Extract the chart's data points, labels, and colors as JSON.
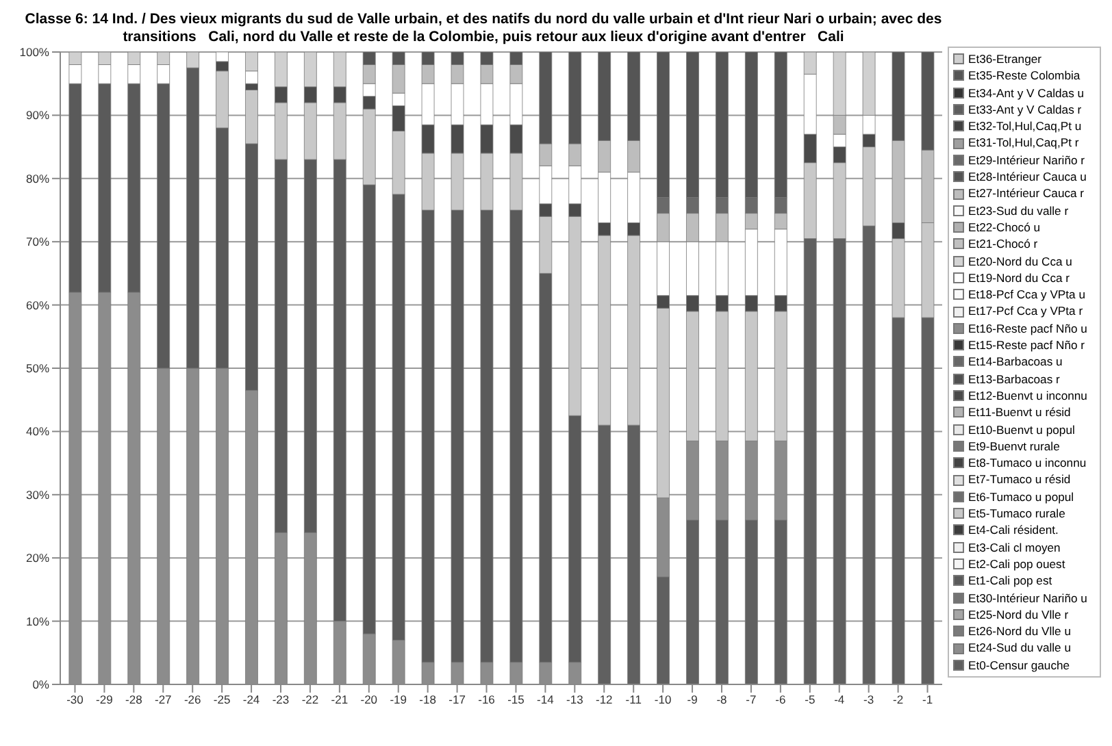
{
  "chart_data": {
    "type": "bar",
    "stacked": true,
    "title": "Classe 6: 14 Ind. / Des vieux migrants du sud de Valle urbain, et des natifs du nord du valle urbain et d'Int rieur Nari o urbain; avec des transitions   Cali, nord du Valle et reste de la Colombie, puis retour aux lieux d'origine avant d'entrer   Cali",
    "categories": [
      "-30",
      "-29",
      "-28",
      "-27",
      "-26",
      "-25",
      "-24",
      "-23",
      "-22",
      "-21",
      "-20",
      "-19",
      "-18",
      "-17",
      "-16",
      "-15",
      "-14",
      "-13",
      "-12",
      "-11",
      "-10",
      "-9",
      "-8",
      "-7",
      "-6",
      "-5",
      "-4",
      "-3",
      "-2",
      "-1"
    ],
    "ylim": [
      0,
      100
    ],
    "yticks": [
      {
        "value": 0,
        "label": "0%"
      },
      {
        "value": 10,
        "label": "10%"
      },
      {
        "value": 20,
        "label": "20%"
      },
      {
        "value": 30,
        "label": "30%"
      },
      {
        "value": 40,
        "label": "40%"
      },
      {
        "value": 50,
        "label": "50%"
      },
      {
        "value": 60,
        "label": "60%"
      },
      {
        "value": 70,
        "label": "70%"
      },
      {
        "value": 80,
        "label": "80%"
      },
      {
        "value": 90,
        "label": "90%"
      },
      {
        "value": 100,
        "label": "100%"
      }
    ],
    "grid": "y",
    "legend": "right",
    "series": [
      {
        "name": "Et0-Censur gauche",
        "color": "#606060",
        "values": [
          0,
          0,
          0,
          0,
          0,
          0,
          0,
          0,
          0,
          0,
          0,
          0,
          0,
          0,
          0,
          0,
          0,
          0,
          41,
          41,
          17,
          26,
          26,
          26,
          26,
          70.5,
          70.5,
          72.5,
          58,
          58
        ]
      },
      {
        "name": "Et24-Sud du valle u",
        "color": "#8c8c8c",
        "values": [
          62,
          62,
          62,
          50,
          50,
          50,
          46.5,
          24,
          24,
          10,
          8,
          7,
          3.5,
          3.5,
          3.5,
          3.5,
          3.5,
          3.5,
          0,
          0,
          12.5,
          12.5,
          12.5,
          12.5,
          12.5,
          0,
          0,
          0,
          0,
          0
        ]
      },
      {
        "name": "Et26-Nord du Vlle u",
        "color": "#7a7a7a",
        "values": [
          0,
          0,
          0,
          0,
          0,
          0,
          0,
          0,
          0,
          0,
          0,
          0,
          0,
          0,
          0,
          0,
          0,
          0,
          0,
          0,
          0,
          0,
          0,
          0,
          0,
          0,
          0,
          0,
          0,
          0
        ]
      },
      {
        "name": "Et25-Nord du Vlle r",
        "color": "#a6a6a6",
        "values": [
          0,
          0,
          0,
          0,
          0,
          0,
          0,
          0,
          0,
          0,
          0,
          0,
          0,
          0,
          0,
          0,
          0,
          0,
          0,
          0,
          0,
          0,
          0,
          0,
          0,
          0,
          0,
          0,
          0,
          0
        ]
      },
      {
        "name": "Et30-Intérieur Nariño u",
        "color": "#737373",
        "values": [
          0,
          0,
          0,
          0,
          0,
          0,
          0,
          0,
          0,
          0,
          0,
          0,
          0,
          0,
          0,
          0,
          0,
          0,
          0,
          0,
          0,
          0,
          0,
          0,
          0,
          0,
          0,
          0,
          0,
          0
        ]
      },
      {
        "name": "Et1-Cali pop est",
        "color": "#5a5a5a",
        "values": [
          33,
          33,
          33,
          45,
          47.5,
          38,
          39,
          59,
          59,
          73,
          71,
          70.5,
          71.5,
          71.5,
          71.5,
          71.5,
          61.5,
          39,
          0,
          0,
          0,
          0,
          0,
          0,
          0,
          0,
          0,
          0,
          0,
          0
        ]
      },
      {
        "name": "Et2-Cali pop ouest",
        "color": "#f5f5f5",
        "values": [
          0,
          0,
          0,
          0,
          0,
          0,
          0,
          0,
          0,
          0,
          0,
          0,
          0,
          0,
          0,
          0,
          0,
          0,
          0,
          0,
          0,
          0,
          0,
          0,
          0,
          0,
          0,
          0,
          0,
          0
        ]
      },
      {
        "name": "Et3-Cali cl moyen",
        "color": "#eeeeee",
        "values": [
          0,
          0,
          0,
          0,
          0,
          0,
          0,
          0,
          0,
          0,
          0,
          0,
          0,
          0,
          0,
          0,
          0,
          0,
          0,
          0,
          0,
          0,
          0,
          0,
          0,
          0,
          0,
          0,
          0,
          0
        ]
      },
      {
        "name": "Et4-Cali résident.",
        "color": "#3c3c3c",
        "values": [
          0,
          0,
          0,
          0,
          0,
          0,
          0,
          0,
          0,
          0,
          0,
          0,
          0,
          0,
          0,
          0,
          0,
          0,
          0,
          0,
          0,
          0,
          0,
          0,
          0,
          0,
          0,
          0,
          0,
          0
        ]
      },
      {
        "name": "Et5-Tumaco rurale",
        "color": "#c8c8c8",
        "values": [
          0,
          0,
          0,
          0,
          0,
          9,
          8.5,
          9,
          9,
          9,
          12,
          10,
          9,
          9,
          9,
          9,
          9,
          31.5,
          30,
          30,
          30,
          20.5,
          20.5,
          20.5,
          20.5,
          12,
          12,
          12.5,
          12.5,
          15
        ]
      },
      {
        "name": "Et6-Tumaco u popul",
        "color": "#6e6e6e",
        "values": [
          0,
          0,
          0,
          0,
          0,
          0,
          0,
          0,
          0,
          0,
          0,
          0,
          0,
          0,
          0,
          0,
          0,
          0,
          0,
          0,
          0,
          0,
          0,
          0,
          0,
          0,
          0,
          0,
          0,
          0
        ]
      },
      {
        "name": "Et7-Tumaco u résid",
        "color": "#e0e0e0",
        "values": [
          0,
          0,
          0,
          0,
          0,
          0,
          0,
          0,
          0,
          0,
          0,
          0,
          0,
          0,
          0,
          0,
          0,
          0,
          0,
          0,
          0,
          0,
          0,
          0,
          0,
          0,
          0,
          0,
          0,
          0
        ]
      },
      {
        "name": "Et8-Tumaco u inconnu",
        "color": "#444444",
        "values": [
          0,
          0,
          0,
          0,
          0,
          0,
          0,
          0,
          0,
          0,
          0,
          0,
          0,
          0,
          0,
          0,
          0,
          0,
          0,
          0,
          0,
          0,
          0,
          0,
          0,
          0,
          0,
          0,
          0,
          0
        ]
      },
      {
        "name": "Et9-Buenvt rurale",
        "color": "#777777",
        "values": [
          0,
          0,
          0,
          0,
          0,
          0,
          0,
          0,
          0,
          0,
          0,
          0,
          0,
          0,
          0,
          0,
          0,
          0,
          0,
          0,
          0,
          0,
          0,
          0,
          0,
          0,
          0,
          0,
          0,
          0
        ]
      },
      {
        "name": "Et10-Buenvt u popul",
        "color": "#e8e8e8",
        "values": [
          0,
          0,
          0,
          0,
          0,
          0,
          0,
          0,
          0,
          0,
          0,
          0,
          0,
          0,
          0,
          0,
          0,
          0,
          0,
          0,
          0,
          0,
          0,
          0,
          0,
          0,
          0,
          0,
          0,
          0
        ]
      },
      {
        "name": "Et11-Buenvt u résid",
        "color": "#b4b4b4",
        "values": [
          0,
          0,
          0,
          0,
          0,
          0,
          0,
          0,
          0,
          0,
          0,
          0,
          0,
          0,
          0,
          0,
          0,
          0,
          0,
          0,
          0,
          0,
          0,
          0,
          0,
          0,
          0,
          0,
          0,
          0
        ]
      },
      {
        "name": "Et12-Buenvt u inconnu",
        "color": "#4a4a4a",
        "values": [
          0,
          0,
          0,
          0,
          0,
          1.5,
          1,
          2.5,
          2.5,
          2.5,
          2,
          4,
          4.5,
          4.5,
          4.5,
          4.5,
          2,
          2,
          2,
          2,
          2,
          2.5,
          2.5,
          2.5,
          2.5,
          4.5,
          2.5,
          2,
          2.5,
          0
        ]
      },
      {
        "name": "Et13-Barbacoas r",
        "color": "#505050",
        "values": [
          0,
          0,
          0,
          0,
          0,
          0,
          0,
          0,
          0,
          0,
          0,
          0,
          0,
          0,
          0,
          0,
          0,
          0,
          0,
          0,
          0,
          0,
          0,
          0,
          0,
          0,
          0,
          0,
          0,
          0
        ]
      },
      {
        "name": "Et14-Barbacoas u",
        "color": "#686868",
        "values": [
          0,
          0,
          0,
          0,
          0,
          0,
          0,
          0,
          0,
          0,
          0,
          0,
          0,
          0,
          0,
          0,
          0,
          0,
          0,
          0,
          0,
          0,
          0,
          0,
          0,
          0,
          0,
          0,
          0,
          0
        ]
      },
      {
        "name": "Et15-Reste pacf Nño r",
        "color": "#383838",
        "values": [
          0,
          0,
          0,
          0,
          0,
          0,
          0,
          0,
          0,
          0,
          0,
          0,
          0,
          0,
          0,
          0,
          0,
          0,
          0,
          0,
          0,
          0,
          0,
          0,
          0,
          0,
          0,
          0,
          0,
          0
        ]
      },
      {
        "name": "Et16-Reste pacf Nño u",
        "color": "#8a8a8a",
        "values": [
          0,
          0,
          0,
          0,
          0,
          0,
          0,
          0,
          0,
          0,
          0,
          0,
          0,
          0,
          0,
          0,
          0,
          0,
          0,
          0,
          0,
          0,
          0,
          0,
          0,
          0,
          0,
          0,
          0,
          0
        ]
      },
      {
        "name": "Et17-Pcf Cca y VPta r",
        "color": "#f0f0f0",
        "values": [
          0,
          0,
          0,
          0,
          0,
          0,
          0,
          0,
          0,
          0,
          0,
          0,
          0,
          0,
          0,
          0,
          0,
          0,
          0,
          0,
          0,
          0,
          0,
          0,
          0,
          0,
          0,
          0,
          0,
          0
        ]
      },
      {
        "name": "Et18-Pcf Cca y VPta u",
        "color": "#fafafa",
        "values": [
          0,
          0,
          0,
          0,
          0,
          0,
          0,
          0,
          0,
          0,
          0,
          0,
          0,
          0,
          0,
          0,
          0,
          0,
          0,
          0,
          0,
          0,
          0,
          0,
          0,
          0,
          0,
          0,
          0,
          0
        ]
      },
      {
        "name": "Et19-Nord du Cca r",
        "color": "#ffffff",
        "values": [
          3,
          3,
          3,
          3,
          0,
          1.5,
          2,
          0,
          0,
          0,
          2,
          2,
          6.5,
          6.5,
          6.5,
          6.5,
          6,
          6,
          8,
          8,
          8.5,
          8.5,
          8.5,
          10.5,
          10.5,
          9.5,
          2,
          3,
          0,
          0
        ]
      },
      {
        "name": "Et20-Nord du Cca u",
        "color": "#d4d4d4",
        "values": [
          0,
          0,
          0,
          0,
          0,
          0,
          0,
          0,
          0,
          0,
          0,
          0,
          0,
          0,
          0,
          0,
          0,
          0,
          0,
          0,
          0,
          0,
          0,
          0,
          0,
          0,
          0,
          0,
          0,
          0
        ]
      },
      {
        "name": "Et21-Chocó r",
        "color": "#c0c0c0",
        "values": [
          0,
          0,
          0,
          0,
          0,
          0,
          0,
          0,
          0,
          0,
          0,
          0,
          0,
          0,
          0,
          0,
          0,
          0,
          0,
          0,
          0,
          0,
          0,
          0,
          0,
          0,
          0,
          0,
          0,
          0
        ]
      },
      {
        "name": "Et22-Chocó u",
        "color": "#b0b0b0",
        "values": [
          0,
          0,
          0,
          0,
          0,
          0,
          0,
          0,
          0,
          0,
          0,
          0,
          0,
          0,
          0,
          0,
          0,
          0,
          0,
          0,
          0,
          0,
          0,
          0,
          0,
          0,
          0,
          0,
          0,
          0
        ]
      },
      {
        "name": "Et23-Sud du valle r",
        "color": "#f8f8f8",
        "values": [
          0,
          0,
          0,
          0,
          0,
          0,
          0,
          0,
          0,
          0,
          0,
          0,
          0,
          0,
          0,
          0,
          0,
          0,
          0,
          0,
          0,
          0,
          0,
          0,
          0,
          0,
          0,
          0,
          0,
          0
        ]
      },
      {
        "name": "Et27-Intérieur Cauca r",
        "color": "#bdbdbd",
        "values": [
          0,
          0,
          0,
          0,
          0,
          0,
          0,
          0,
          0,
          0,
          3,
          4.5,
          3,
          3,
          3,
          3,
          3.5,
          3.5,
          5,
          5,
          4.5,
          4.5,
          4.5,
          2.5,
          2.5,
          0,
          3,
          0,
          13,
          11.5
        ]
      },
      {
        "name": "Et28-Intérieur Cauca u",
        "color": "#545454",
        "values": [
          0,
          0,
          0,
          0,
          0,
          0,
          0,
          0,
          0,
          0,
          0,
          0,
          0,
          0,
          0,
          0,
          0,
          0,
          0,
          0,
          0,
          0,
          0,
          0,
          0,
          0,
          0,
          0,
          0,
          0
        ]
      },
      {
        "name": "Et29-Intérieur Nariño r",
        "color": "#6a6a6a",
        "values": [
          0,
          0,
          0,
          0,
          0,
          0,
          0,
          0,
          0,
          0,
          0,
          0,
          0,
          0,
          0,
          0,
          0,
          0,
          0,
          0,
          2.5,
          2.5,
          2.5,
          2.5,
          2.5,
          0,
          0,
          0,
          0,
          0
        ]
      },
      {
        "name": "Et31-Tol,Hul,Caq,Pt r",
        "color": "#9e9e9e",
        "values": [
          0,
          0,
          0,
          0,
          0,
          0,
          0,
          0,
          0,
          0,
          0,
          0,
          0,
          0,
          0,
          0,
          0,
          0,
          0,
          0,
          0,
          0,
          0,
          0,
          0,
          0,
          0,
          0,
          0,
          0
        ]
      },
      {
        "name": "Et32-Tol,Hul,Caq,Pt u",
        "color": "#404040",
        "values": [
          0,
          0,
          0,
          0,
          0,
          0,
          0,
          0,
          0,
          0,
          0,
          0,
          0,
          0,
          0,
          0,
          0,
          0,
          0,
          0,
          0,
          0,
          0,
          0,
          0,
          0,
          0,
          0,
          0,
          0
        ]
      },
      {
        "name": "Et33-Ant y V Caldas r",
        "color": "#5e5e5e",
        "values": [
          0,
          0,
          0,
          0,
          0,
          0,
          0,
          0,
          0,
          0,
          0,
          0,
          0,
          0,
          0,
          0,
          0,
          0,
          0,
          0,
          0,
          0,
          0,
          0,
          0,
          0,
          0,
          0,
          0,
          0
        ]
      },
      {
        "name": "Et34-Ant y V Caldas u",
        "color": "#343434",
        "values": [
          0,
          0,
          0,
          0,
          0,
          0,
          0,
          0,
          0,
          0,
          0,
          0,
          0,
          0,
          0,
          0,
          0,
          0,
          0,
          0,
          0,
          0,
          0,
          0,
          0,
          0,
          0,
          0,
          0,
          0
        ]
      },
      {
        "name": "Et35-Reste Colombia",
        "color": "#555555",
        "values": [
          0,
          0,
          0,
          0,
          0,
          0,
          0,
          0,
          0,
          0,
          2,
          2,
          2,
          2,
          2,
          2,
          14.5,
          14.5,
          14,
          14,
          23,
          23,
          23,
          23,
          23,
          0,
          0,
          0,
          14,
          15.5
        ]
      },
      {
        "name": "Et36-Etranger",
        "color": "#d0d0d0",
        "values": [
          2,
          2,
          2,
          2,
          2.5,
          0,
          3,
          5.5,
          5.5,
          5.5,
          0,
          0,
          0,
          0,
          0,
          0,
          0,
          0,
          0,
          0,
          0,
          0,
          0,
          0,
          0,
          3.5,
          10,
          10,
          0,
          0
        ]
      }
    ]
  }
}
